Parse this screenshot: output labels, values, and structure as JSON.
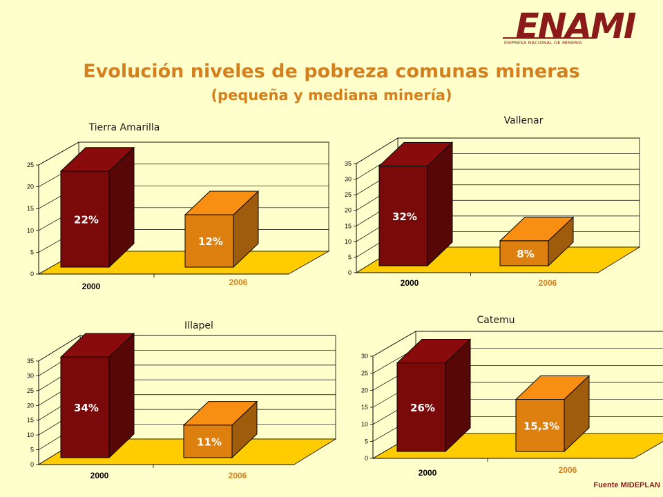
{
  "logo": {
    "name": "ENAMI",
    "subtitle": "EMPRESA NACIONAL DE MINERIA",
    "color": "#8B1A1A"
  },
  "title": "Evolución niveles de pobreza comunas mineras",
  "subtitle": "(pequeña y mediana minería)",
  "source": "Fuente MIDEPLAN",
  "colors": {
    "bar_2000": "#7A0A0A",
    "bar_2006": "#DD8010",
    "floor": "#FFCC00",
    "title": "#D4801E"
  },
  "chart_data": [
    {
      "type": "bar",
      "title": "Tierra Amarilla",
      "categories": [
        "2000",
        "2006"
      ],
      "values": [
        22,
        12
      ],
      "data_labels": [
        "22%",
        "12%"
      ],
      "ylim": [
        0,
        25
      ],
      "yticks": [
        0,
        5,
        10,
        15,
        20,
        25
      ],
      "grid": true
    },
    {
      "type": "bar",
      "title": "Vallenar",
      "categories": [
        "2000",
        "2006"
      ],
      "values": [
        32,
        8
      ],
      "data_labels": [
        "32%",
        "8%"
      ],
      "ylim": [
        0,
        35
      ],
      "yticks": [
        0,
        5,
        10,
        15,
        20,
        25,
        30,
        35
      ],
      "grid": true
    },
    {
      "type": "bar",
      "title": "Illapel",
      "categories": [
        "2000",
        "2006"
      ],
      "values": [
        34,
        11
      ],
      "data_labels": [
        "34%",
        "11%"
      ],
      "ylim": [
        0,
        35
      ],
      "yticks": [
        0,
        5,
        10,
        15,
        20,
        25,
        30,
        35
      ],
      "grid": true
    },
    {
      "type": "bar",
      "title": "Catemu",
      "categories": [
        "2000",
        "2006"
      ],
      "values": [
        26,
        15.3
      ],
      "data_labels": [
        "26%",
        "15,3%"
      ],
      "ylim": [
        0,
        30
      ],
      "yticks": [
        0,
        5,
        10,
        15,
        20,
        25,
        30
      ],
      "grid": true
    }
  ]
}
